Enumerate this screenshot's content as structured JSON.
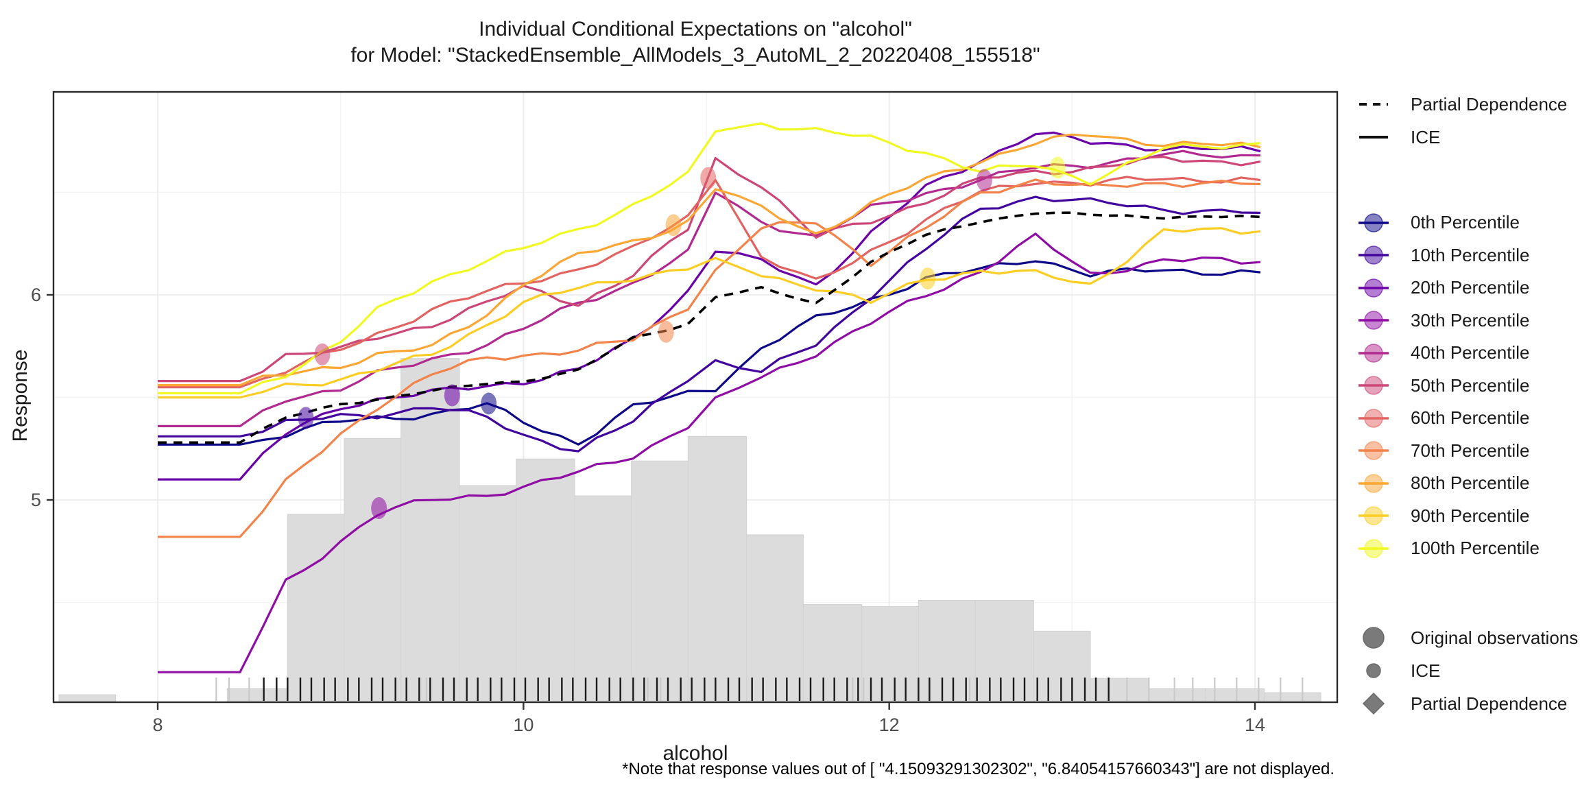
{
  "title": {
    "line1": "Individual Conditional Expectations on \"alcohol\"",
    "line2": "for Model: \"StackedEnsemble_AllModels_3_AutoML_2_20220408_155518\""
  },
  "footnote": "*Note that response values out of [ \"4.15093291302302\",  \"6.84054157660343\"] are not displayed.",
  "legend": {
    "line_types": [
      {
        "label": "Partial Dependence",
        "style": "dashed"
      },
      {
        "label": "ICE",
        "style": "solid"
      }
    ],
    "shapes": [
      {
        "label": "Original observations",
        "shape": "circle-large"
      },
      {
        "label": "ICE",
        "shape": "circle-small"
      },
      {
        "label": "Partial Dependence",
        "shape": "diamond"
      }
    ],
    "shape_color": "#7a7a7a"
  },
  "chart_data": {
    "type": "line",
    "title": "Individual Conditional Expectations on \"alcohol\" for Model: \"StackedEnsemble_AllModels_3_AutoML_2_20220408_155518\"",
    "xlabel": "alcohol",
    "ylabel": "Response",
    "xlim": [
      7.43,
      14.45
    ],
    "ylim": [
      4.01,
      7.0
    ],
    "x_ticks": [
      {
        "v": 8,
        "label": "8"
      },
      {
        "v": 10,
        "label": "10"
      },
      {
        "v": 12,
        "label": "12"
      },
      {
        "v": 14,
        "label": "14"
      }
    ],
    "x_minor_ticks": [
      9,
      11,
      13
    ],
    "y_ticks": [
      {
        "v": 5,
        "label": "5"
      },
      {
        "v": 6,
        "label": "6"
      }
    ],
    "y_minor_ticks": [
      4.5,
      5.5,
      6.5
    ],
    "grid": true,
    "legend_position": "right",
    "clip_range": [
      4.15093291302302,
      6.84054157660343
    ],
    "x": [
      8,
      8.45,
      8.7,
      9,
      9.2,
      9.5,
      9.8,
      10,
      10.3,
      10.6,
      10.9,
      11.05,
      11.3,
      11.6,
      11.9,
      12.2,
      12.5,
      12.8,
      13.1,
      13.5,
      14.03
    ],
    "series": [
      {
        "name": "0th Percentile",
        "color": "#0d0887",
        "values": [
          5.27,
          5.27,
          5.32,
          5.38,
          5.4,
          5.42,
          5.46,
          5.38,
          5.28,
          5.45,
          5.52,
          5.55,
          5.74,
          5.88,
          5.98,
          6.08,
          6.12,
          6.18,
          6.1,
          6.12,
          6.11
        ],
        "observation": {
          "x": 9.81,
          "y": 5.47
        }
      },
      {
        "name": "10th Percentile",
        "color": "#41049d",
        "values": [
          5.31,
          5.31,
          5.37,
          5.41,
          5.42,
          5.45,
          5.4,
          5.32,
          5.24,
          5.38,
          5.6,
          5.68,
          5.62,
          5.76,
          6.0,
          6.22,
          6.42,
          6.48,
          6.45,
          6.42,
          6.4
        ],
        "observation": {
          "x": 8.81,
          "y": 5.4
        }
      },
      {
        "name": "20th Percentile",
        "color": "#6a00a8",
        "values": [
          5.1,
          5.1,
          5.32,
          5.46,
          5.49,
          5.52,
          5.56,
          5.58,
          5.63,
          5.78,
          6.02,
          6.22,
          6.16,
          6.05,
          6.3,
          6.52,
          6.66,
          6.79,
          6.74,
          6.72,
          6.7
        ],
        "observation": {
          "x": 9.61,
          "y": 5.51
        }
      },
      {
        "name": "30th Percentile",
        "color": "#8f0da4",
        "values": [
          4.16,
          4.16,
          4.6,
          4.8,
          4.93,
          5.0,
          5.03,
          5.06,
          5.13,
          5.22,
          5.36,
          5.48,
          5.6,
          5.72,
          5.86,
          6.0,
          6.12,
          6.28,
          6.1,
          6.17,
          6.16
        ],
        "observation": {
          "x": 9.21,
          "y": 4.96
        }
      },
      {
        "name": "40th Percentile",
        "color": "#b12a90",
        "values": [
          5.36,
          5.36,
          5.5,
          5.54,
          5.61,
          5.69,
          5.76,
          5.83,
          5.96,
          6.06,
          6.2,
          6.5,
          6.36,
          6.28,
          6.42,
          6.5,
          6.56,
          6.62,
          6.64,
          6.68,
          6.68
        ],
        "observation": {
          "x": 12.52,
          "y": 6.56
        }
      },
      {
        "name": "50th Percentile",
        "color": "#cc4778",
        "values": [
          5.58,
          5.58,
          5.71,
          5.73,
          5.79,
          5.86,
          5.96,
          6.03,
          5.96,
          6.1,
          6.32,
          6.66,
          6.54,
          6.28,
          6.36,
          6.46,
          6.56,
          6.6,
          6.62,
          6.66,
          6.65
        ],
        "observation": {
          "x": 8.9,
          "y": 5.71
        }
      },
      {
        "name": "60th Percentile",
        "color": "#e16462",
        "values": [
          5.55,
          5.55,
          5.63,
          5.73,
          5.81,
          5.93,
          6.01,
          6.06,
          6.13,
          6.22,
          6.38,
          6.58,
          6.18,
          6.06,
          6.22,
          6.36,
          6.5,
          6.56,
          6.54,
          6.57,
          6.56
        ],
        "observation": {
          "x": 11.01,
          "y": 6.57
        }
      },
      {
        "name": "70th Percentile",
        "color": "#f2844b",
        "values": [
          4.82,
          4.82,
          5.08,
          5.32,
          5.46,
          5.61,
          5.69,
          5.71,
          5.73,
          5.78,
          5.95,
          6.12,
          6.32,
          6.36,
          6.16,
          6.32,
          6.5,
          6.56,
          6.52,
          6.55,
          6.54
        ],
        "observation": {
          "x": 10.78,
          "y": 5.82
        }
      },
      {
        "name": "80th Percentile",
        "color": "#fca636",
        "values": [
          5.56,
          5.56,
          5.61,
          5.66,
          5.71,
          5.74,
          5.91,
          6.06,
          6.19,
          6.26,
          6.36,
          6.52,
          6.42,
          6.3,
          6.44,
          6.56,
          6.66,
          6.74,
          6.78,
          6.74,
          6.72
        ],
        "observation": {
          "x": 10.82,
          "y": 6.34
        }
      },
      {
        "name": "90th Percentile",
        "color": "#fcce25",
        "values": [
          5.5,
          5.5,
          5.56,
          5.59,
          5.63,
          5.71,
          5.86,
          5.96,
          6.03,
          6.09,
          6.13,
          6.16,
          6.1,
          6.04,
          5.96,
          6.08,
          6.12,
          6.1,
          6.05,
          6.31,
          6.31
        ],
        "observation": {
          "x": 12.21,
          "y": 6.08
        }
      },
      {
        "name": "100th Percentile",
        "color": "#f0f921",
        "values": [
          5.52,
          5.52,
          5.62,
          5.77,
          5.92,
          6.07,
          6.17,
          6.22,
          6.32,
          6.44,
          6.58,
          6.8,
          6.84,
          6.8,
          6.76,
          6.7,
          6.6,
          6.63,
          6.56,
          6.71,
          6.74
        ],
        "observation": {
          "x": 12.92,
          "y": 6.62
        }
      }
    ],
    "partial_dependence": {
      "name": "Partial Dependence",
      "color": "#000000",
      "values": [
        5.28,
        5.28,
        5.4,
        5.47,
        5.49,
        5.53,
        5.57,
        5.58,
        5.63,
        5.79,
        5.86,
        5.99,
        6.03,
        5.96,
        6.16,
        6.29,
        6.36,
        6.4,
        6.39,
        6.38,
        6.38
      ]
    },
    "histogram": {
      "color": "#dcdcdc",
      "edge_color": "#d2d2d2",
      "baseline": 4.013,
      "bars": [
        {
          "x0": 7.46,
          "x1": 7.77,
          "top": 4.05
        },
        {
          "x0": 8.38,
          "x1": 8.71,
          "top": 4.08
        },
        {
          "x0": 8.71,
          "x1": 9.02,
          "top": 4.93
        },
        {
          "x0": 9.02,
          "x1": 9.33,
          "top": 5.3
        },
        {
          "x0": 9.33,
          "x1": 9.65,
          "top": 5.69
        },
        {
          "x0": 9.65,
          "x1": 9.96,
          "top": 5.07
        },
        {
          "x0": 9.96,
          "x1": 10.28,
          "top": 5.2
        },
        {
          "x0": 10.28,
          "x1": 10.59,
          "top": 5.02
        },
        {
          "x0": 10.59,
          "x1": 10.9,
          "top": 5.19
        },
        {
          "x0": 10.9,
          "x1": 11.22,
          "top": 5.31
        },
        {
          "x0": 11.22,
          "x1": 11.53,
          "top": 4.83
        },
        {
          "x0": 11.53,
          "x1": 11.85,
          "top": 4.49
        },
        {
          "x0": 11.85,
          "x1": 12.16,
          "top": 4.48
        },
        {
          "x0": 12.16,
          "x1": 12.47,
          "top": 4.51
        },
        {
          "x0": 12.47,
          "x1": 12.79,
          "top": 4.51
        },
        {
          "x0": 12.79,
          "x1": 13.1,
          "top": 4.36
        },
        {
          "x0": 13.1,
          "x1": 13.42,
          "top": 4.13
        },
        {
          "x0": 13.42,
          "x1": 13.73,
          "top": 4.08
        },
        {
          "x0": 13.73,
          "x1": 14.05,
          "top": 4.08
        },
        {
          "x0": 14.05,
          "x1": 14.36,
          "top": 4.06
        }
      ]
    },
    "rug": {
      "black": [
        8.58,
        8.65,
        8.71,
        8.78,
        8.84,
        8.91,
        8.97,
        9.04,
        9.1,
        9.17,
        9.23,
        9.3,
        9.36,
        9.43,
        9.49,
        9.56,
        9.62,
        9.69,
        9.75,
        9.82,
        9.88,
        9.95,
        10.01,
        10.08,
        10.14,
        10.21,
        10.27,
        10.34,
        10.4,
        10.47,
        10.53,
        10.6,
        10.66,
        10.73,
        10.79,
        10.86,
        10.92,
        10.99,
        11.05,
        11.12,
        11.18,
        11.25,
        11.31,
        11.38,
        11.44,
        11.51,
        11.57,
        11.64,
        11.7,
        11.77,
        11.83,
        11.9,
        11.96,
        12.03,
        12.09,
        12.16,
        12.22,
        12.29,
        12.35,
        12.42,
        12.48,
        12.55,
        12.61,
        12.68,
        12.74,
        12.81,
        12.87,
        12.94,
        13.0,
        13.07,
        13.13,
        13.2
      ],
      "gray": [
        8.32,
        8.39,
        8.5,
        9.47,
        10.68,
        10.75,
        11.8,
        11.86,
        12.44,
        13.3,
        13.42,
        13.56,
        13.66,
        13.78,
        13.9,
        14.02,
        14.14,
        14.26
      ]
    }
  }
}
